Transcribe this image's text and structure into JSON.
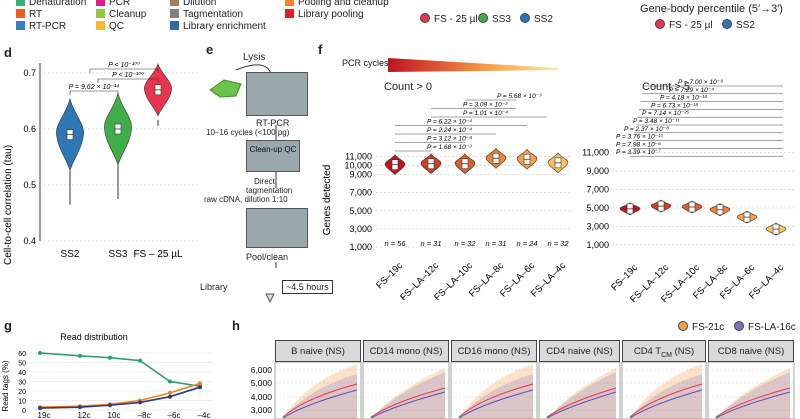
{
  "top_legend": {
    "steps": [
      {
        "label": "Denaturation",
        "color": "#2bb673"
      },
      {
        "label": "RT",
        "color": "#f15a24"
      },
      {
        "label": "RT-PCR",
        "color": "#3a7ebf"
      },
      {
        "label": "PCR",
        "color": "#e6197c"
      },
      {
        "label": "Cleanup",
        "color": "#8dc63f"
      },
      {
        "label": "QC",
        "color": "#f7b82a"
      },
      {
        "label": "Dilution",
        "color": "#a67c52"
      },
      {
        "label": "Tagmentation",
        "color": "#808080"
      },
      {
        "label": "Library enrichment",
        "color": "#2e6da4"
      },
      {
        "label": "Pooling and cleanup",
        "color": "#f58220"
      },
      {
        "label": "Library pooling",
        "color": "#e31e24"
      }
    ],
    "methods": [
      {
        "label": "FS - 25 µl",
        "color": "#e8344e"
      },
      {
        "label": "SS3",
        "color": "#3fae49"
      },
      {
        "label": "SS2",
        "color": "#2e77b5"
      }
    ],
    "gene_body": {
      "title": "Gene-body percentile (5′→3′)",
      "items": [
        {
          "label": "FS - 25 µl",
          "color": "#e8344e"
        },
        {
          "label": "SS2",
          "color": "#2e77b5"
        }
      ]
    }
  },
  "panel_letters": {
    "d": "d",
    "e": "e",
    "f": "f",
    "g": "g",
    "h": "h"
  },
  "panel_e": {
    "lysis": "Lysis",
    "rtpcr": "RT-PCR",
    "rtpcr_detail": "10–16 cycles (<100 pg)",
    "cleanup_box": "Clean-up QC",
    "direct": "Direct",
    "tagmentation": "tagmentation",
    "raw": "raw cDNA, dilution 1:10",
    "pool": "Pool/clean",
    "library": "Library",
    "time": "~4.5 hours"
  },
  "panel_f": {
    "pcr_cycles": "PCR cycles",
    "count0": "Count > 0",
    "count5": "Count > 5",
    "ylabel": "Genes detected",
    "pvals_left": [
      "P = 5.68 × 10⁻³",
      "P = 3.09 × 10⁻²",
      "P = 1.01 × 10⁻⁴",
      "P = 6.22 × 10⁻⁴",
      "P = 2.24 × 10⁻⁴",
      "P = 3.12 × 10⁻⁸",
      "P = 1.68 × 10⁻³"
    ],
    "pvals_right": [
      "P = 7.00 × 10⁻⁹",
      "P = 7.29 × 10⁻⁴",
      "P = 4.18 × 10⁻¹⁸",
      "P = 6.73 × 10⁻¹⁸",
      "P = 7.14 × 10⁻²⁵",
      "P = 3.48 × 10⁻¹¹",
      "P = 2.37 × 10⁻⁸",
      "P = 3.76 × 10⁻¹³",
      "P = 7.98 × 10⁻⁶",
      "P = 3.39 × 10⁻⁷"
    ],
    "n_labels": [
      "n = 56",
      "n = 31",
      "n = 32",
      "n = 31",
      "n = 24",
      "n = 32"
    ]
  },
  "panel_g": {
    "title": "Read distribution",
    "ylabel": "Read tags (%)",
    "yticks": [
      "60",
      "50",
      "40",
      "30",
      "20",
      "10",
      "0"
    ],
    "xticks": [
      "19c",
      "12c",
      "10c",
      "–8c",
      "–6c",
      "–4c"
    ]
  },
  "panel_h": {
    "legend": [
      {
        "label": "FS-21c",
        "color": "#f5a04a"
      },
      {
        "label": "FS-LA-16c",
        "color": "#7b6fc4"
      }
    ],
    "strips": [
      "B naive (NS)",
      "CD14 mono (NS)",
      "CD16 mono (NS)",
      "CD4 naive (NS)",
      "CD4 T",
      "CD8 naive (NS)"
    ],
    "strip_sub": "CM",
    "strip_suffix": " (NS)",
    "yticks": [
      "6,000",
      "5,000",
      "4,000",
      "3,000"
    ]
  },
  "chart_data": [
    {
      "type": "violin",
      "title": "Cell-to-cell correlation",
      "ylabel": "Cell-to-cell correlation (tau)",
      "categories": [
        "SS2",
        "SS3",
        "FS – 25 µL"
      ],
      "medians": [
        0.59,
        0.6,
        0.67
      ],
      "colors": [
        "#2e77b5",
        "#3fae49",
        "#e8344e"
      ],
      "ylim": [
        0.4,
        0.7
      ],
      "yticks": [
        "0.7",
        "0.6",
        "0.5",
        "0.4"
      ],
      "annotations": [
        "P < 10⁻¹⁰⁰",
        "P < 10⁻¹⁰⁰",
        "P = 9.62 × 10⁻¹⁴"
      ]
    },
    {
      "type": "violin",
      "title": "Count > 0",
      "ylabel": "Genes detected",
      "categories": [
        "FS–19c",
        "FS–LA–12c",
        "FS–LA–10c",
        "FS–LA–8c",
        "FS–LA–6c",
        "FS–LA–4c"
      ],
      "medians": [
        10100,
        10200,
        10200,
        10800,
        10700,
        10300
      ],
      "yticks": [
        "11,000",
        "10,000",
        "9,000",
        "7,000",
        "5,000",
        "3,000",
        "1,000"
      ],
      "ylim": [
        0,
        11500
      ]
    },
    {
      "type": "violin",
      "title": "Count > 5",
      "categories": [
        "FS–19c",
        "FS–LA–12c",
        "FS–LA–10c",
        "FS–LA–8c",
        "FS–LA–6c",
        "FS–LA–4c"
      ],
      "medians": [
        4900,
        5200,
        5100,
        4800,
        4000,
        2700
      ],
      "yticks": [
        "11,000",
        "9,000",
        "7,000",
        "5,000",
        "3,000",
        "1,000"
      ],
      "ylim": [
        0,
        11500
      ]
    }
  ]
}
